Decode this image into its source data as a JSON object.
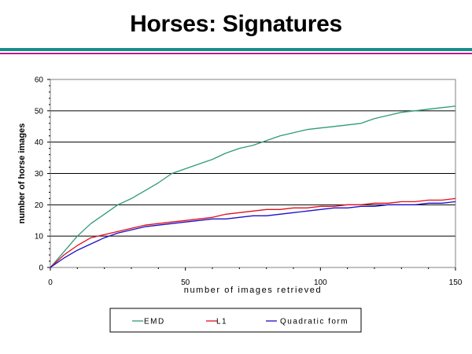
{
  "title": "Horses: Signatures",
  "colors": {
    "rule_top": "#1b8c8c",
    "rule_bottom": "#c0188f"
  },
  "chart_data": {
    "type": "line",
    "xlabel": "number of images retrieved",
    "ylabel": "number of horse images",
    "xlim": [
      0,
      150
    ],
    "ylim": [
      0,
      60
    ],
    "xticks": [
      0,
      50,
      100,
      150
    ],
    "yticks": [
      0,
      10,
      20,
      30,
      40,
      50,
      60
    ],
    "grid": "horizontal",
    "legend": "bottom",
    "series": [
      {
        "name": "EMD",
        "color": "#2f9a7a",
        "x": [
          0,
          5,
          10,
          15,
          20,
          25,
          30,
          35,
          40,
          45,
          50,
          55,
          60,
          65,
          70,
          75,
          80,
          85,
          90,
          95,
          100,
          105,
          110,
          115,
          120,
          125,
          130,
          135,
          140,
          145,
          150
        ],
        "y": [
          0,
          5,
          10,
          14,
          17,
          20,
          22,
          24.5,
          27,
          30,
          31.5,
          33,
          34.5,
          36.5,
          38,
          39,
          40.5,
          42,
          43,
          44,
          44.5,
          45,
          45.5,
          46,
          47.5,
          48.5,
          49.5,
          50,
          50.5,
          51,
          51.5
        ]
      },
      {
        "name": "L1",
        "color": "#e0101c",
        "x": [
          0,
          5,
          10,
          15,
          20,
          25,
          30,
          35,
          40,
          45,
          50,
          55,
          60,
          65,
          70,
          75,
          80,
          85,
          90,
          95,
          100,
          105,
          110,
          115,
          120,
          125,
          130,
          135,
          140,
          145,
          150
        ],
        "y": [
          0,
          4,
          7,
          9.5,
          10.5,
          11.5,
          12.5,
          13.5,
          14,
          14.5,
          15,
          15.5,
          16,
          17,
          17.5,
          18,
          18.5,
          18.5,
          19,
          19,
          19.5,
          19.5,
          20,
          20,
          20.5,
          20.5,
          21,
          21,
          21.5,
          21.5,
          22
        ]
      },
      {
        "name": "Quadratic form",
        "color": "#1a10c8",
        "x": [
          0,
          5,
          10,
          15,
          20,
          25,
          30,
          35,
          40,
          45,
          50,
          55,
          60,
          65,
          70,
          75,
          80,
          85,
          90,
          95,
          100,
          105,
          110,
          115,
          120,
          125,
          130,
          135,
          140,
          145,
          150
        ],
        "y": [
          0,
          3,
          5.5,
          7.5,
          9.5,
          11,
          12,
          13,
          13.5,
          14,
          14.5,
          15,
          15.5,
          15.5,
          16,
          16.5,
          16.5,
          17,
          17.5,
          18,
          18.5,
          19,
          19,
          19.5,
          19.5,
          20,
          20,
          20,
          20.5,
          20.5,
          21
        ]
      }
    ]
  }
}
